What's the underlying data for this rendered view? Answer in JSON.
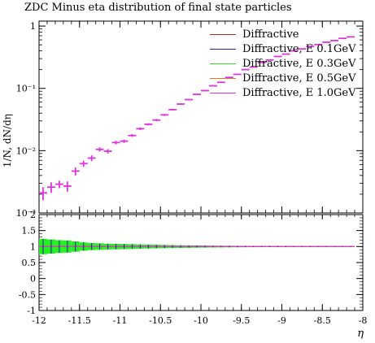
{
  "chart_data": {
    "type": "scatter",
    "title": "ZDC Minus eta distribution of final state particles",
    "ylabel": "1/N, dN/dη",
    "xlabel": "η",
    "xlim": [
      -12,
      -8
    ],
    "ylim": [
      0.001,
      1.2
    ],
    "yscale": "log",
    "x_ticks": [
      "-12",
      "-11.5",
      "-11",
      "-10.5",
      "-10",
      "-9.5",
      "-9",
      "-8.5",
      "-8"
    ],
    "y_ticks_main": [
      "10⁻³",
      "10⁻²",
      "10⁻¹",
      "1"
    ],
    "y_ticks_ratio": [
      "-1",
      "-0.5",
      "0",
      "0.5",
      "1",
      "1.5",
      "2"
    ],
    "legend_position": "top-right",
    "series": [
      {
        "name": "Diffractive",
        "color": "#b22222"
      },
      {
        "name": "Diffractive, E 0.1GeV",
        "color": "#2222dd"
      },
      {
        "name": "Diffractive, E 0.3GeV",
        "color": "#33dd33"
      },
      {
        "name": "Diffractive, E 0.5GeV",
        "color": "#dd7722"
      },
      {
        "name": "Diffractive, E 1.0GeV",
        "color": "#dd33dd"
      }
    ],
    "x": [
      -11.95,
      -11.85,
      -11.75,
      -11.65,
      -11.55,
      -11.45,
      -11.35,
      -11.25,
      -11.15,
      -11.05,
      -10.95,
      -10.85,
      -10.75,
      -10.65,
      -10.55,
      -10.45,
      -10.35,
      -10.25,
      -10.15,
      -10.05,
      -9.95,
      -9.85,
      -9.75,
      -9.65,
      -9.55,
      -9.45,
      -9.35,
      -9.25,
      -9.15,
      -9.05,
      -8.95,
      -8.85,
      -8.75,
      -8.65,
      -8.55,
      -8.45,
      -8.35,
      -8.25,
      -8.15
    ],
    "values": [
      0.0021,
      0.0026,
      0.0029,
      0.0027,
      0.0047,
      0.0062,
      0.0076,
      0.0105,
      0.0098,
      0.0135,
      0.0142,
      0.0175,
      0.0225,
      0.0265,
      0.031,
      0.0375,
      0.0455,
      0.056,
      0.066,
      0.08,
      0.092,
      0.11,
      0.125,
      0.15,
      0.168,
      0.2,
      0.22,
      0.26,
      0.285,
      0.325,
      0.355,
      0.4,
      0.43,
      0.47,
      0.505,
      0.55,
      0.585,
      0.635,
      0.67
    ],
    "errors": [
      0.0005,
      0.0005,
      0.0004,
      0.0005,
      0.0007,
      0.0007,
      0.0008,
      0.0008,
      0.0008,
      0.0009,
      0.0009,
      0.0009,
      0.0011,
      0.0011,
      0.0012,
      0.0013,
      0.0014,
      0.0016,
      0.0017,
      0.0019,
      0.002,
      0.0022,
      0.0024,
      0.0026,
      0.0028,
      0.0031,
      0.0033,
      0.0036,
      0.0038,
      0.0041,
      0.0043,
      0.0046,
      0.0048,
      0.005,
      0.0053,
      0.0056,
      0.0058,
      0.006,
      0.0063
    ],
    "ratio": {
      "values": [
        1,
        1,
        1,
        1,
        1,
        1,
        1,
        1,
        1,
        1,
        1,
        1,
        1,
        1,
        1,
        1,
        1,
        1,
        1,
        1,
        1,
        1,
        1,
        1,
        1,
        1,
        1,
        1,
        1,
        1,
        1,
        1,
        1,
        1,
        1,
        1,
        1,
        1,
        1
      ],
      "band_halfwidth": [
        0.24,
        0.22,
        0.2,
        0.19,
        0.16,
        0.13,
        0.11,
        0.1,
        0.09,
        0.085,
        0.08,
        0.075,
        0.065,
        0.06,
        0.055,
        0.05,
        0.045,
        0.04,
        0.037,
        0.034,
        0.031,
        0.028,
        0.026,
        0.024,
        0.022,
        0.02,
        0.018,
        0.017,
        0.016,
        0.015,
        0.014,
        0.013,
        0.012,
        0.012,
        0.011,
        0.011,
        0.01,
        0.01,
        0.01
      ],
      "band_color": "#22ee22",
      "ylim": [
        -1,
        2
      ]
    }
  }
}
